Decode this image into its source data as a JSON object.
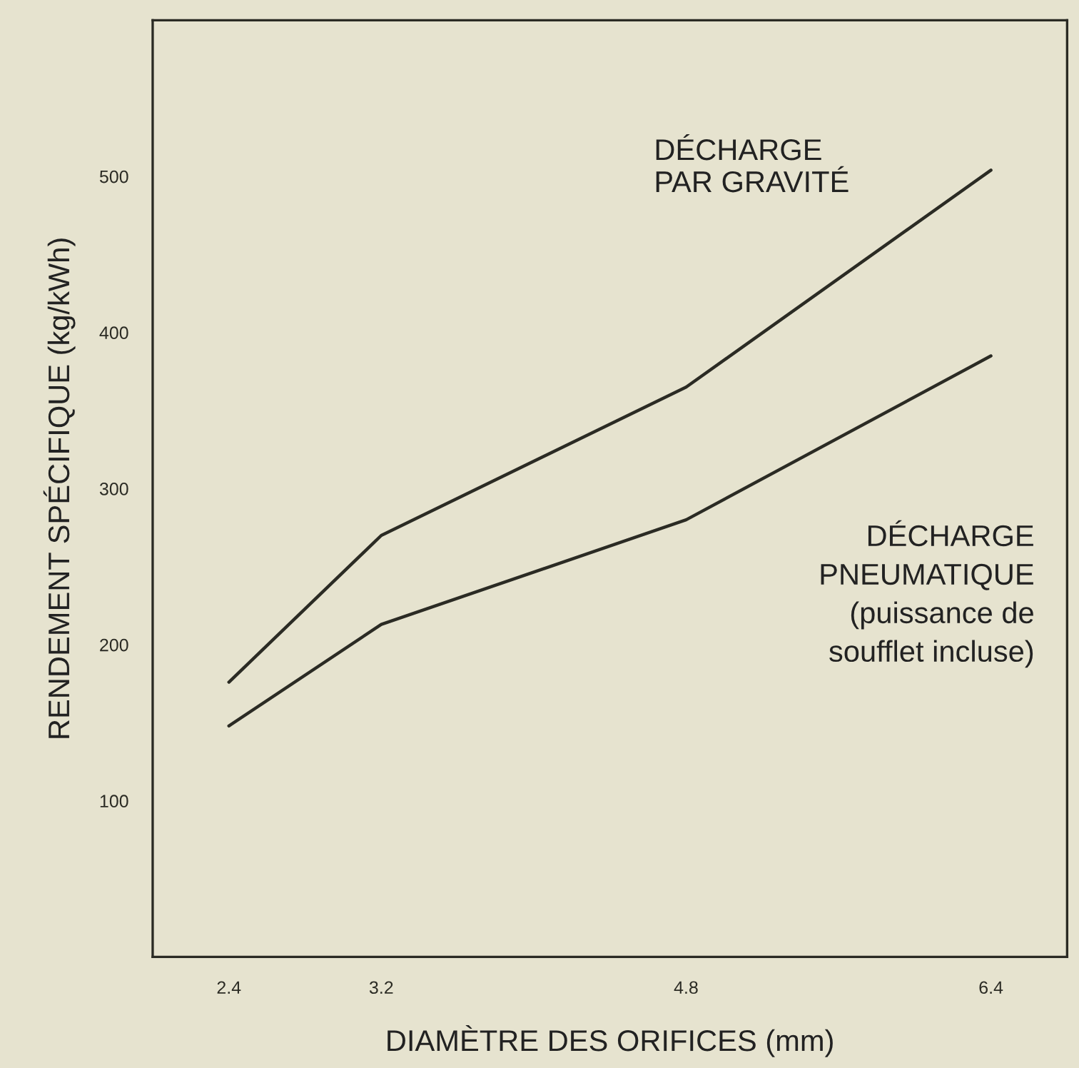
{
  "chart_data": {
    "type": "line",
    "xlabel": "DIAMÈTRE DES ORIFICES (mm)",
    "ylabel": "RENDEMENT SPÉCIFIQUE (kg/kWh)",
    "x": [
      2.4,
      3.2,
      4.8,
      6.4
    ],
    "series": [
      {
        "name": "DÉCHARGE\nPAR GRAVITÉ",
        "color": "#2b2b24",
        "values": [
          176,
          270,
          365,
          504
        ]
      },
      {
        "name": "DÉCHARGE\nPNEUMATIQUE\n(puissance de\nsoufflet incluse)",
        "color": "#2b2b24",
        "values": [
          148,
          213,
          280,
          385
        ]
      }
    ],
    "xlim": [
      2.0,
      6.8
    ],
    "ylim": [
      0,
      600
    ],
    "xticks": [
      2.4,
      3.2,
      4.8,
      6.4
    ],
    "yticks": [
      100,
      200,
      300,
      400,
      500
    ],
    "grid": false,
    "legend": false,
    "marker": "none",
    "line_style": "solid"
  }
}
